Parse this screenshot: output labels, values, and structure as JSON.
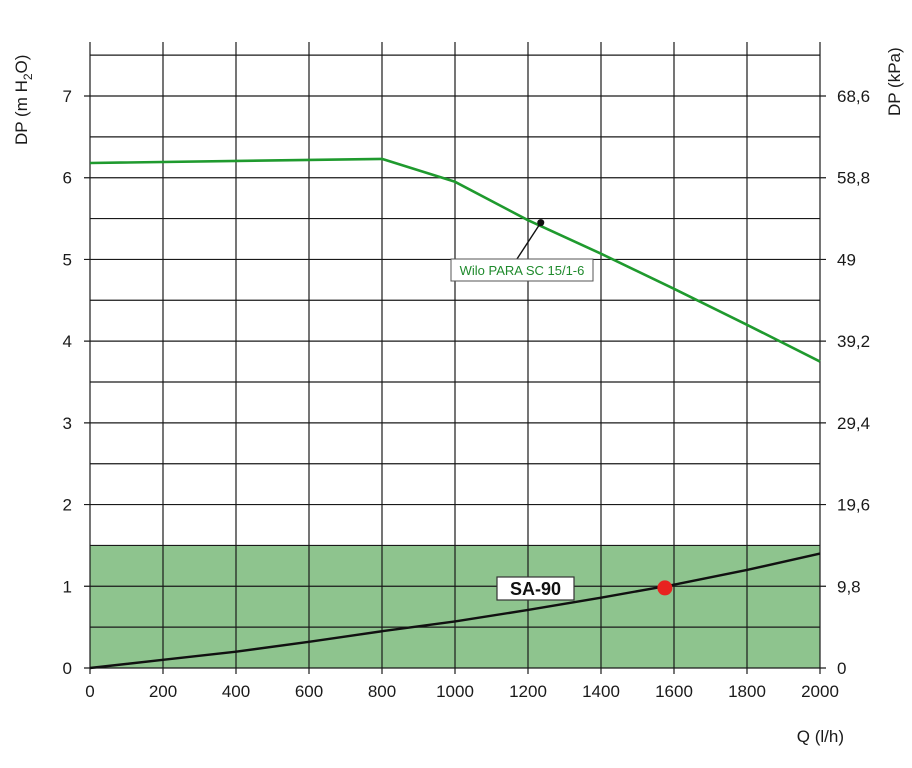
{
  "chart_data": {
    "type": "line",
    "xlabel": "Q (l/h)",
    "ylabel_left": "DP (m H2O)",
    "ylabel_right": "DP (kPa)",
    "xlim": [
      0,
      2000
    ],
    "ylim": [
      0,
      7
    ],
    "x_ticks": [
      0,
      200,
      400,
      600,
      800,
      1000,
      1200,
      1400,
      1600,
      1800,
      2000
    ],
    "y_ticks_left": [
      0,
      1,
      2,
      3,
      4,
      5,
      6,
      7
    ],
    "y_ticks_right": [
      "0",
      "9,8",
      "19,6",
      "29,4",
      "39,2",
      "49",
      "58,8",
      "68,6"
    ],
    "grid": true,
    "colors": {
      "pump_curve": "#1f9a2e",
      "system_curve": "#111111",
      "shaded_region": "#8ec48e",
      "operating_point": "#e8231f"
    },
    "shaded_region": {
      "y_range": [
        0,
        1.5
      ],
      "x_range": [
        0,
        2000
      ]
    },
    "series": [
      {
        "name": "Wilo PARA SC 15/1-6",
        "x": [
          0,
          800,
          1000,
          1200,
          1400,
          1600,
          1800,
          2000
        ],
        "y": [
          6.18,
          6.23,
          5.95,
          5.48,
          5.07,
          4.64,
          4.2,
          3.75
        ]
      },
      {
        "name": "SA-90",
        "x": [
          0,
          200,
          400,
          600,
          800,
          1000,
          1200,
          1400,
          1600,
          1800,
          2000
        ],
        "y": [
          0,
          0.1,
          0.2,
          0.32,
          0.45,
          0.57,
          0.71,
          0.86,
          1.02,
          1.2,
          1.4
        ]
      }
    ],
    "operating_point": {
      "x": 1575,
      "y": 0.98
    },
    "annotations": [
      {
        "text": "Wilo PARA SC 15/1-6",
        "x": 1235,
        "y": 5.45
      },
      {
        "text": "SA-90",
        "x": 1100,
        "y": 1.0
      }
    ]
  }
}
